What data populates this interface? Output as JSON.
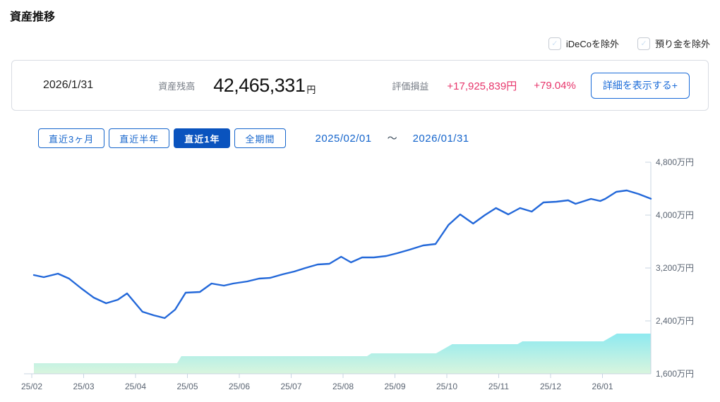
{
  "page": {
    "title": "資産推移"
  },
  "filters": {
    "exclude_ideco": "iDeCoを除外",
    "exclude_deposit": "預り金を除外",
    "check_glyph": "✓"
  },
  "summary": {
    "date": "2026/1/31",
    "balance_label": "資産残高",
    "balance_value": "42,465,331",
    "balance_unit": "円",
    "pl_label": "評価損益",
    "pl_amount": "+17,925,839円",
    "pl_percent": "+79.04%",
    "detail_button": "詳細を表示する+"
  },
  "period": {
    "buttons": [
      {
        "label": "直近3ヶ月",
        "selected": false
      },
      {
        "label": "直近半年",
        "selected": false
      },
      {
        "label": "直近1年",
        "selected": true
      },
      {
        "label": "全期間",
        "selected": false
      }
    ],
    "range_start": "2025/02/01",
    "range_separator": "～",
    "range_end": "2026/01/31"
  },
  "chart_data": {
    "type": "line",
    "title": "資産推移",
    "x_range": [
      "2025/02/01",
      "2026/01/31"
    ],
    "y_axis": {
      "min": 1600,
      "max": 4800,
      "unit": "万円",
      "ticks": [
        {
          "value": 4800,
          "label": "4,800万円"
        },
        {
          "value": 4000,
          "label": "4,000万円"
        },
        {
          "value": 3200,
          "label": "3,200万円"
        },
        {
          "value": 2400,
          "label": "2,400万円"
        },
        {
          "value": 1600,
          "label": "1,600万円"
        }
      ]
    },
    "x_axis": {
      "ticks": [
        "25/02",
        "25/03",
        "25/04",
        "25/05",
        "25/06",
        "25/07",
        "25/08",
        "25/09",
        "25/10",
        "25/11",
        "25/12",
        "26/01"
      ]
    },
    "series": [
      {
        "name": "資産残高",
        "type": "line",
        "color": "#2368d9",
        "unit": "万円",
        "points": [
          [
            0.0,
            3093
          ],
          [
            0.016,
            3061
          ],
          [
            0.039,
            3115
          ],
          [
            0.057,
            3040
          ],
          [
            0.077,
            2891
          ],
          [
            0.097,
            2752
          ],
          [
            0.117,
            2667
          ],
          [
            0.136,
            2720
          ],
          [
            0.151,
            2816
          ],
          [
            0.176,
            2539
          ],
          [
            0.194,
            2485
          ],
          [
            0.212,
            2443
          ],
          [
            0.229,
            2571
          ],
          [
            0.246,
            2827
          ],
          [
            0.269,
            2837
          ],
          [
            0.288,
            2965
          ],
          [
            0.308,
            2933
          ],
          [
            0.323,
            2965
          ],
          [
            0.346,
            2997
          ],
          [
            0.365,
            3040
          ],
          [
            0.383,
            3051
          ],
          [
            0.403,
            3104
          ],
          [
            0.422,
            3147
          ],
          [
            0.44,
            3200
          ],
          [
            0.46,
            3253
          ],
          [
            0.479,
            3264
          ],
          [
            0.498,
            3371
          ],
          [
            0.514,
            3285
          ],
          [
            0.532,
            3360
          ],
          [
            0.551,
            3360
          ],
          [
            0.571,
            3381
          ],
          [
            0.589,
            3424
          ],
          [
            0.609,
            3477
          ],
          [
            0.631,
            3541
          ],
          [
            0.651,
            3563
          ],
          [
            0.672,
            3851
          ],
          [
            0.691,
            4011
          ],
          [
            0.712,
            3872
          ],
          [
            0.731,
            4000
          ],
          [
            0.749,
            4107
          ],
          [
            0.769,
            4011
          ],
          [
            0.788,
            4107
          ],
          [
            0.807,
            4053
          ],
          [
            0.826,
            4192
          ],
          [
            0.847,
            4203
          ],
          [
            0.866,
            4224
          ],
          [
            0.878,
            4171
          ],
          [
            0.903,
            4245
          ],
          [
            0.918,
            4213
          ],
          [
            0.926,
            4245
          ],
          [
            0.944,
            4352
          ],
          [
            0.961,
            4373
          ],
          [
            0.98,
            4320
          ],
          [
            1.0,
            4247
          ]
        ]
      }
    ],
    "area": {
      "type": "area",
      "unit": "万円",
      "gradient": [
        "#85e8f2",
        "#d9f5de"
      ],
      "steps": [
        {
          "t0": 0.0,
          "t1": 0.232,
          "value": 1760
        },
        {
          "t0": 0.239,
          "t1": 0.54,
          "value": 1867
        },
        {
          "t0": 0.547,
          "t1": 0.652,
          "value": 1909
        },
        {
          "t0": 0.678,
          "t1": 0.784,
          "value": 2048
        },
        {
          "t0": 0.792,
          "t1": 0.923,
          "value": 2091
        },
        {
          "t0": 0.945,
          "t1": 1.0,
          "value": 2208
        }
      ]
    }
  }
}
